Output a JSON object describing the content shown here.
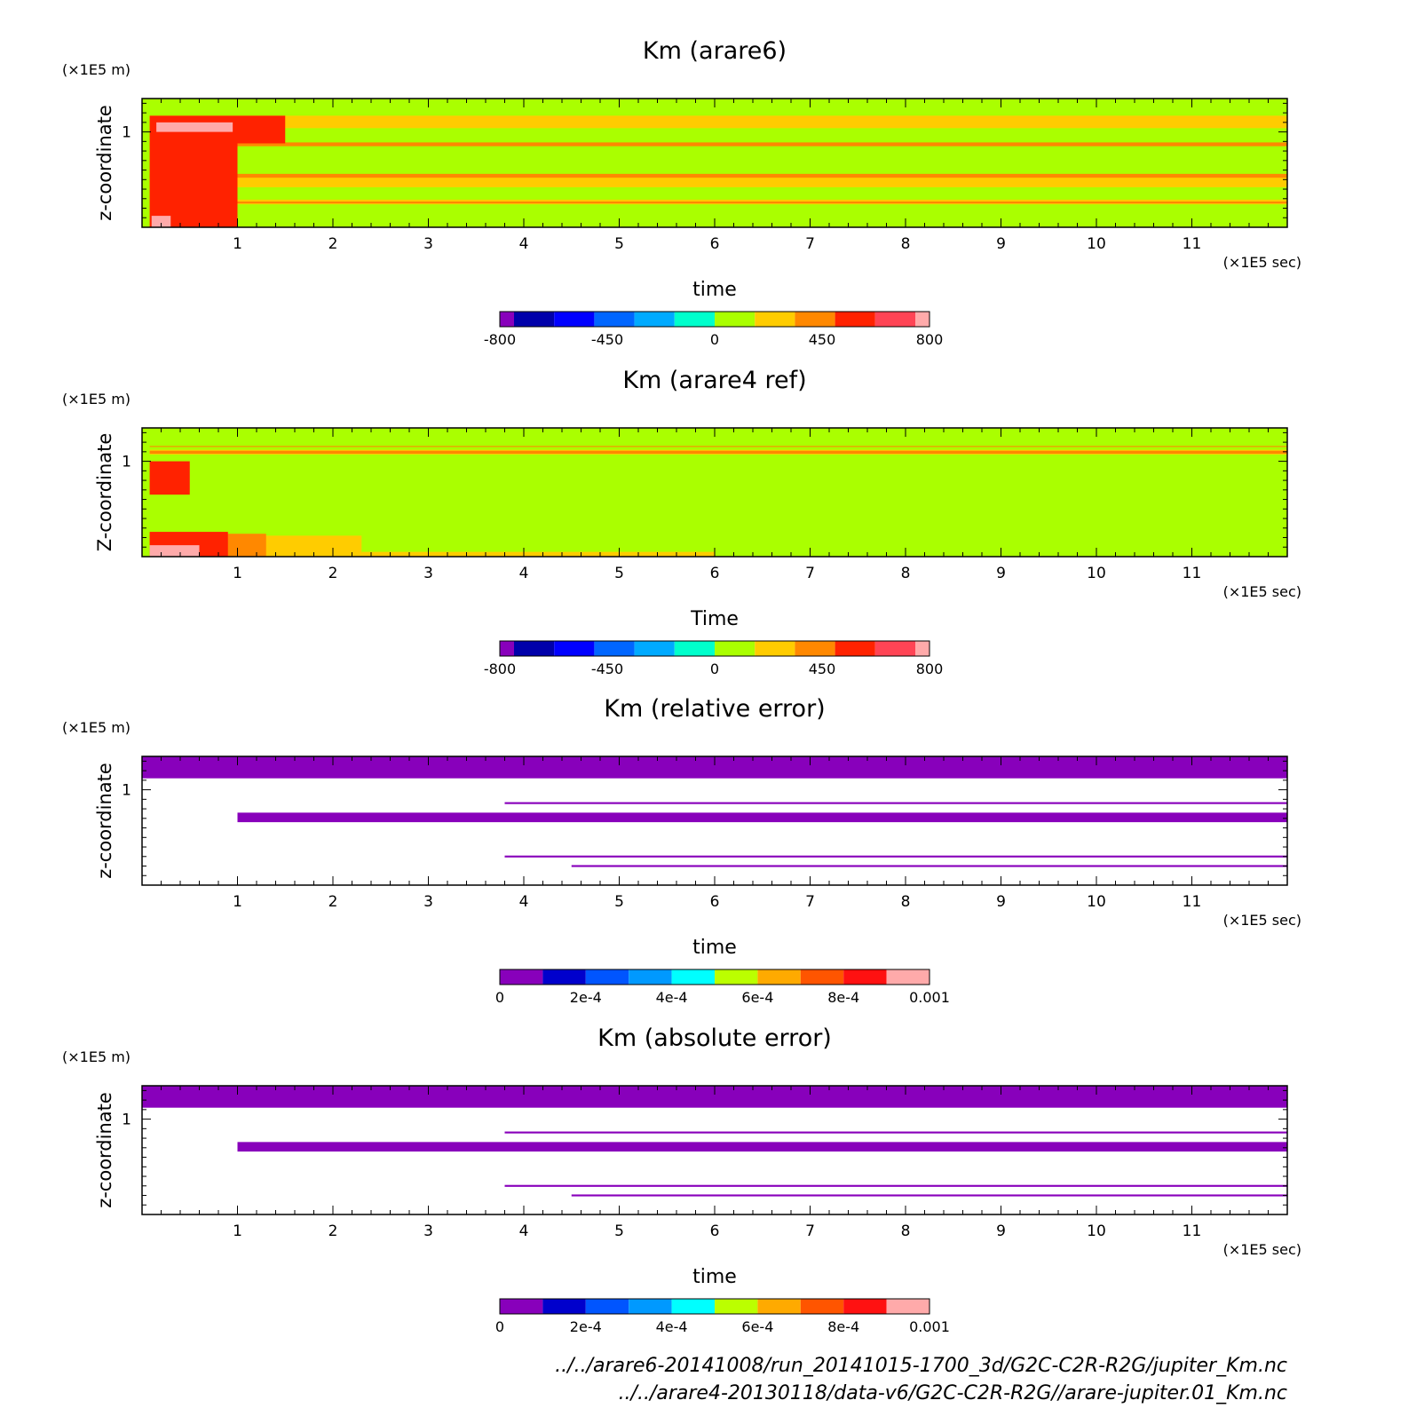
{
  "chart_data": [
    {
      "type": "heatmap",
      "title": "Km (arare6)",
      "xlabel": "time",
      "x_unit": "(×1E5 sec)",
      "ylabel": "z-coordinate",
      "y_unit": "(×1E5 m)",
      "xlim": [
        0,
        12
      ],
      "ylim": [
        0,
        1.35
      ],
      "xticks": [
        "1",
        "2",
        "3",
        "4",
        "5",
        "6",
        "7",
        "8",
        "9",
        "10",
        "11"
      ],
      "yticks": [
        "1"
      ],
      "fill": "#aaff00",
      "colorbar": {
        "colors": [
          "#8800bb",
          "#0000aa",
          "#0000ff",
          "#0066ff",
          "#00aaff",
          "#00ffcc",
          "#aaff00",
          "#ffcc00",
          "#ff8800",
          "#ff2200",
          "#ff4455",
          "#ffaaaa"
        ],
        "labels": [
          "-800",
          "-450",
          "0",
          "450",
          "800"
        ]
      },
      "regions": [
        {
          "color": "#ffcc00",
          "t0": 0.08,
          "t1": 12,
          "z0": 1.04,
          "z1": 1.17
        },
        {
          "color": "#ff8800",
          "t0": 0.08,
          "t1": 12,
          "z0": 0.85,
          "z1": 0.89
        },
        {
          "color": "#ffcc00",
          "t0": 0.08,
          "t1": 12,
          "z0": 0.42,
          "z1": 0.54
        },
        {
          "color": "#ff8800",
          "t0": 0.08,
          "t1": 12,
          "z0": 0.52,
          "z1": 0.56
        },
        {
          "color": "#ffcc00",
          "t0": 0.2,
          "t1": 12,
          "z0": 0.24,
          "z1": 0.29
        },
        {
          "color": "#ff8800",
          "t0": 0.2,
          "t1": 12,
          "z0": 0.25,
          "z1": 0.27
        },
        {
          "color": "#ff2200",
          "t0": 0.08,
          "t1": 1.5,
          "z0": 0.88,
          "z1": 1.17
        },
        {
          "color": "#ff2200",
          "t0": 0.08,
          "t1": 1.0,
          "z0": 0.0,
          "z1": 0.88
        },
        {
          "color": "#ffaaaa",
          "t0": 0.15,
          "t1": 0.95,
          "z0": 1.0,
          "z1": 1.1
        },
        {
          "color": "#ffaaaa",
          "t0": 0.1,
          "t1": 0.3,
          "z0": 0.0,
          "z1": 0.12
        }
      ]
    },
    {
      "type": "heatmap",
      "title": "Km (arare4 ref)",
      "xlabel": "Time",
      "x_unit": "(×1E5 sec)",
      "ylabel": "Z-coordinate",
      "y_unit": "(×1E5 m)",
      "xlim": [
        0,
        12
      ],
      "ylim": [
        0,
        1.35
      ],
      "xticks": [
        "1",
        "2",
        "3",
        "4",
        "5",
        "6",
        "7",
        "8",
        "9",
        "10",
        "11"
      ],
      "yticks": [
        "1"
      ],
      "fill": "#aaff00",
      "colorbar": {
        "colors": [
          "#8800bb",
          "#0000aa",
          "#0000ff",
          "#0066ff",
          "#00aaff",
          "#00ffcc",
          "#aaff00",
          "#ffcc00",
          "#ff8800",
          "#ff2200",
          "#ff4455",
          "#ffaaaa"
        ],
        "labels": [
          "-800",
          "-450",
          "0",
          "450",
          "800"
        ]
      },
      "regions": [
        {
          "color": "#ffcc00",
          "t0": 0.08,
          "t1": 12,
          "z0": 1.07,
          "z1": 1.12
        },
        {
          "color": "#ff8800",
          "t0": 0.08,
          "t1": 12,
          "z0": 1.08,
          "z1": 1.11
        },
        {
          "color": "#ff8800",
          "t0": 0.08,
          "t1": 12,
          "z0": 1.15,
          "z1": 1.16
        },
        {
          "color": "#ff2200",
          "t0": 0.08,
          "t1": 0.5,
          "z0": 0.65,
          "z1": 1.0
        },
        {
          "color": "#ffcc00",
          "t0": 0.08,
          "t1": 2.3,
          "z0": 0.0,
          "z1": 0.22
        },
        {
          "color": "#ffcc00",
          "t0": 2.3,
          "t1": 6.0,
          "z0": 0.0,
          "z1": 0.05
        },
        {
          "color": "#ff8800",
          "t0": 0.08,
          "t1": 1.3,
          "z0": 0.0,
          "z1": 0.24
        },
        {
          "color": "#ff2200",
          "t0": 0.08,
          "t1": 0.9,
          "z0": 0.0,
          "z1": 0.26
        },
        {
          "color": "#ffaaaa",
          "t0": 0.08,
          "t1": 0.6,
          "z0": 0.0,
          "z1": 0.12
        }
      ]
    },
    {
      "type": "heatmap",
      "title": "Km (relative error)",
      "xlabel": "time",
      "x_unit": "(×1E5 sec)",
      "ylabel": "z-coordinate",
      "y_unit": "(×1E5 m)",
      "xlim": [
        0,
        12
      ],
      "ylim": [
        0,
        1.35
      ],
      "xticks": [
        "1",
        "2",
        "3",
        "4",
        "5",
        "6",
        "7",
        "8",
        "9",
        "10",
        "11"
      ],
      "yticks": [
        "1"
      ],
      "fill": "#ffffff",
      "colorbar": {
        "colors": [
          "#8800bb",
          "#0000cc",
          "#0055ff",
          "#0099ff",
          "#00ffff",
          "#bbff00",
          "#ffaa00",
          "#ff5500",
          "#ff1111",
          "#ffaaaa"
        ],
        "labels": [
          "0",
          "2e-4",
          "4e-4",
          "6e-4",
          "8e-4",
          "0.001"
        ]
      },
      "regions": [
        {
          "color": "#8800bb",
          "t0": 0.0,
          "t1": 12,
          "z0": 1.12,
          "z1": 1.35
        },
        {
          "color": "#8800bb",
          "t0": 1.0,
          "t1": 12,
          "z0": 0.66,
          "z1": 0.76
        },
        {
          "color": "#8800bb",
          "t0": 3.8,
          "t1": 12,
          "z0": 0.85,
          "z1": 0.87
        },
        {
          "color": "#8800bb",
          "t0": 3.8,
          "t1": 12,
          "z0": 0.29,
          "z1": 0.31
        },
        {
          "color": "#8800bb",
          "t0": 4.5,
          "t1": 12,
          "z0": 0.19,
          "z1": 0.21
        }
      ]
    },
    {
      "type": "heatmap",
      "title": "Km (absolute error)",
      "xlabel": "time",
      "x_unit": "(×1E5 sec)",
      "ylabel": "z-coordinate",
      "y_unit": "(×1E5 m)",
      "xlim": [
        0,
        12
      ],
      "ylim": [
        0,
        1.35
      ],
      "xticks": [
        "1",
        "2",
        "3",
        "4",
        "5",
        "6",
        "7",
        "8",
        "9",
        "10",
        "11"
      ],
      "yticks": [
        "1"
      ],
      "fill": "#ffffff",
      "colorbar": {
        "colors": [
          "#8800bb",
          "#0000cc",
          "#0055ff",
          "#0099ff",
          "#00ffff",
          "#bbff00",
          "#ffaa00",
          "#ff5500",
          "#ff1111",
          "#ffaaaa"
        ],
        "labels": [
          "0",
          "2e-4",
          "4e-4",
          "6e-4",
          "8e-4",
          "0.001"
        ]
      },
      "regions": [
        {
          "color": "#8800bb",
          "t0": 0.0,
          "t1": 12,
          "z0": 1.12,
          "z1": 1.35
        },
        {
          "color": "#8800bb",
          "t0": 1.0,
          "t1": 12,
          "z0": 0.66,
          "z1": 0.76
        },
        {
          "color": "#8800bb",
          "t0": 3.8,
          "t1": 12,
          "z0": 0.85,
          "z1": 0.87
        },
        {
          "color": "#8800bb",
          "t0": 3.8,
          "t1": 12,
          "z0": 0.29,
          "z1": 0.31
        },
        {
          "color": "#8800bb",
          "t0": 4.5,
          "t1": 12,
          "z0": 0.19,
          "z1": 0.21
        }
      ]
    }
  ],
  "footer": {
    "path_1": "../../arare6-20141008/run_20141015-1700_3d/G2C-C2R-R2G/jupiter_Km.nc",
    "path_2": "../../arare4-20130118/data-v6/G2C-C2R-R2G//arare-jupiter.01_Km.nc"
  }
}
